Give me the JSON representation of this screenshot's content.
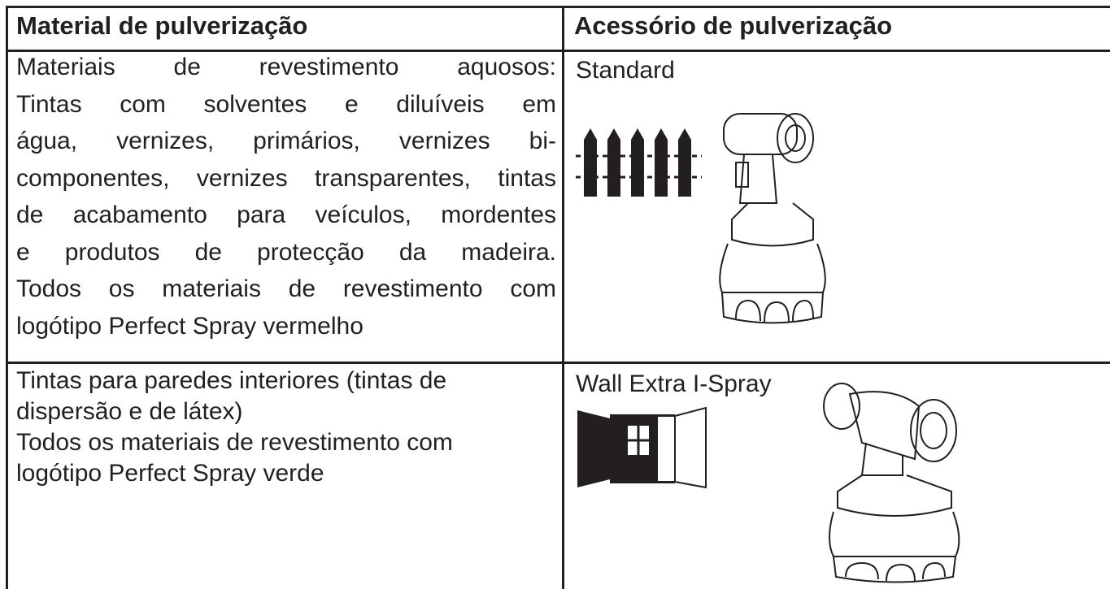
{
  "table": {
    "header": [
      "Material de pulverização",
      "Acessório de pulverização"
    ],
    "rows": [
      {
        "material": [
          "Materiais de revestimento aquosos:",
          "Tintas com solventes e diluíveis em",
          "água, vernizes, primários, vernizes bi-",
          "componentes, vernizes transparentes, tintas",
          "de acabamento para veículos, mordentes",
          "e produtos de protecção da madeira.",
          "Todos os materiais de revestimento com",
          "logótipo Perfect Spray vermelho"
        ],
        "accessory": "Standard"
      },
      {
        "material": [
          "Tintas para paredes interiores (tintas de",
          "dispersão e de látex)",
          "Todos os materiais de revestimento com",
          "logótipo Perfect Spray verde"
        ],
        "accessory": "Wall Extra I-Spray"
      }
    ]
  }
}
